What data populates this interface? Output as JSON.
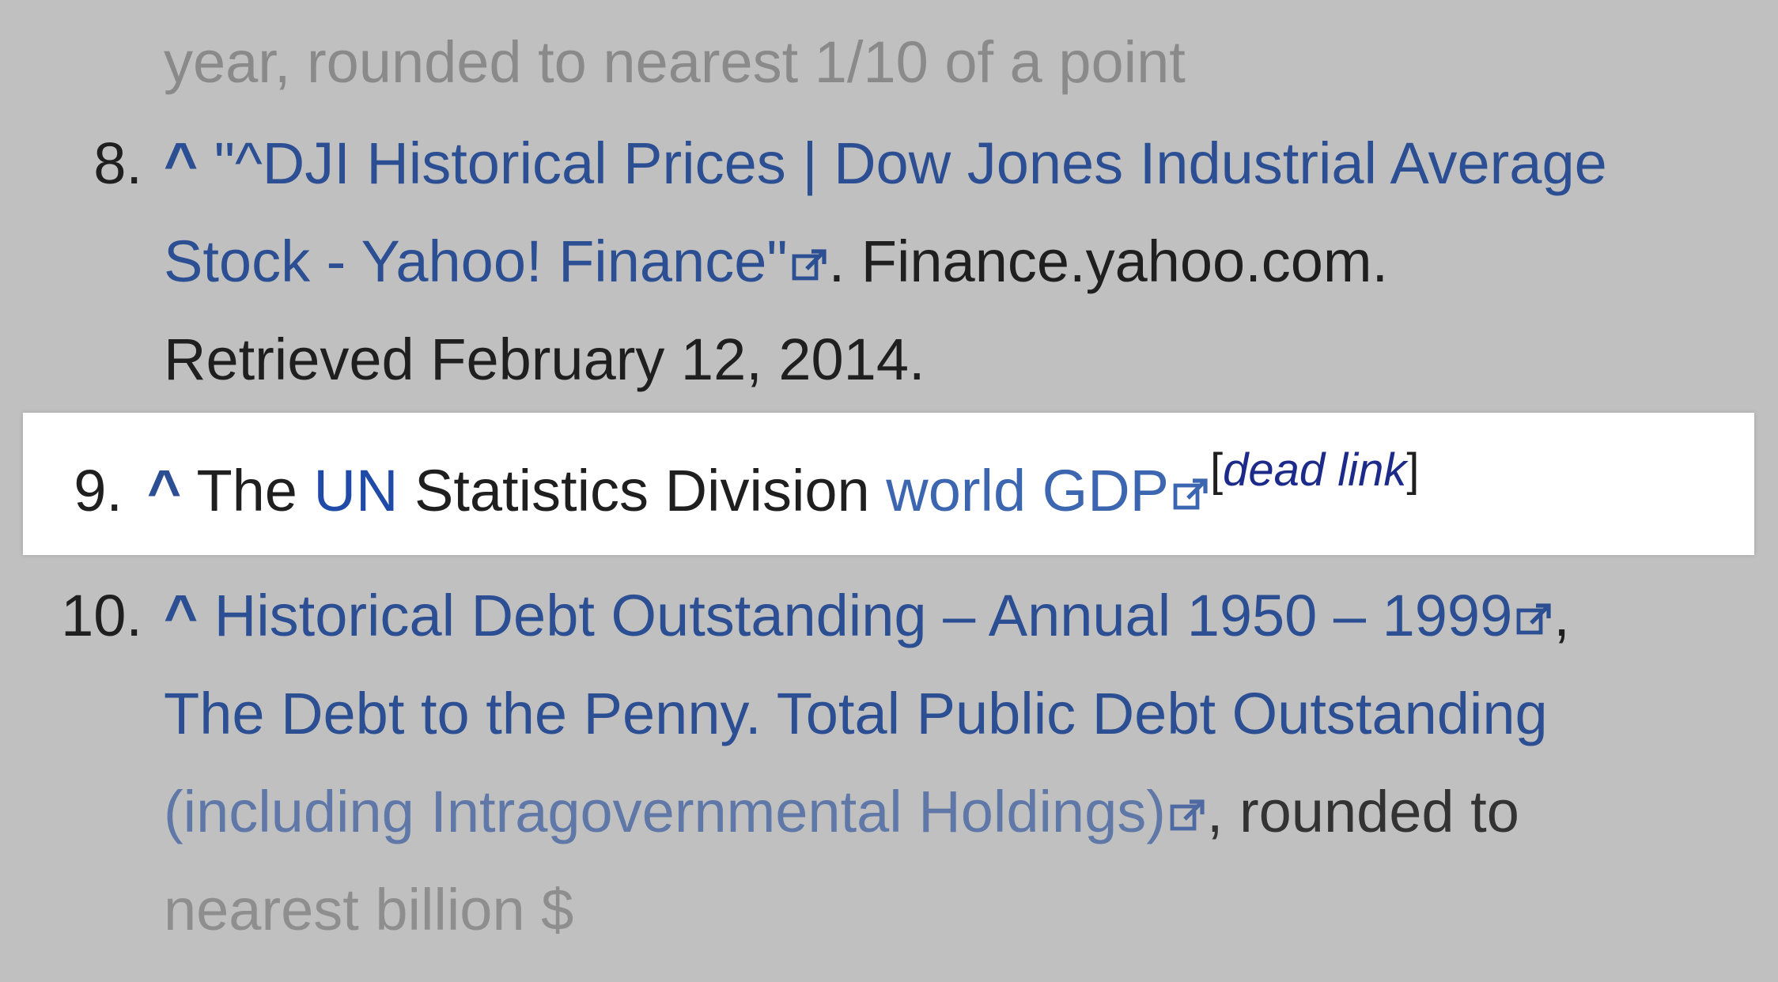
{
  "ref_partial_top": {
    "text": "year, rounded to nearest 1/10 of a point"
  },
  "ref8": {
    "number": "8.",
    "caret": "^",
    "link_line1": "\"^DJI Historical Prices | Dow Jones Industrial Average",
    "link_line2": "Stock - Yahoo! Finance\"",
    "after_link": ". Finance.yahoo.com.",
    "retrieved": "Retrieved February 12, 2014."
  },
  "ref9": {
    "number": "9.",
    "caret": "^",
    "text_the": "The",
    "link_un": "UN",
    "text_middle": "Statistics Division",
    "link_world_gdp": "world GDP",
    "dead_open": "[",
    "dead_link": "dead link",
    "dead_close": "]"
  },
  "ref10": {
    "number": "10.",
    "caret": "^",
    "link_line1": "Historical Debt Outstanding – Annual 1950 – 1999",
    "comma": ",",
    "link_line2": "The Debt to the Penny. Total Public Debt Outstanding",
    "link_line3": "(including Intragovernmental Holdings)",
    "after_link": ", rounded to",
    "partial_bottom": "nearest billion $"
  },
  "icons": {
    "external_link": "external-link-icon"
  },
  "colors": {
    "background": "#c0c0c0",
    "highlight": "#ffffff",
    "link": "#2c4f93",
    "text": "#1f1f1f"
  }
}
